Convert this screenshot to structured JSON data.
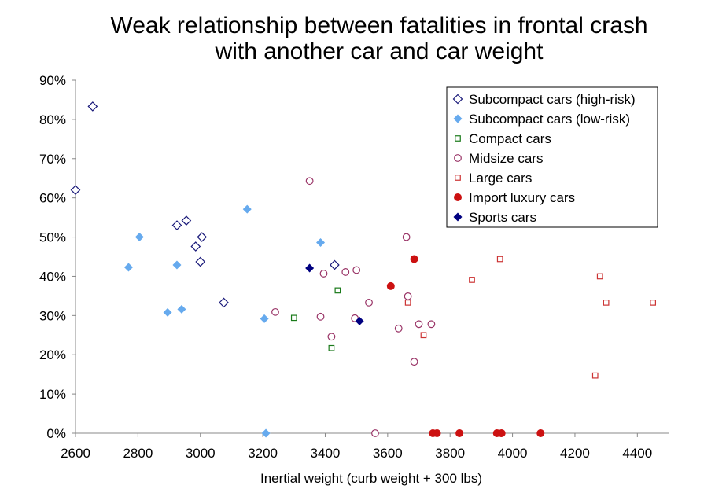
{
  "chart_data": {
    "type": "scatter",
    "title": [
      "Weak relationship between fatalities in frontal crash",
      "with another car and car weight"
    ],
    "xlabel": "Inertial weight (curb weight + 300 lbs)",
    "ylabel": "",
    "xlim": [
      2600,
      4500
    ],
    "ylim": [
      0,
      90
    ],
    "xticks": [
      2600,
      2800,
      3000,
      3200,
      3400,
      3600,
      3800,
      4000,
      4200,
      4400
    ],
    "yticks": [
      0,
      10,
      20,
      30,
      40,
      50,
      60,
      70,
      80,
      90
    ],
    "ytick_labels": [
      "0%",
      "10%",
      "20%",
      "30%",
      "40%",
      "50%",
      "60%",
      "70%",
      "80%",
      "90%"
    ],
    "grid": false,
    "legend_position": "top-right",
    "series": [
      {
        "name": "Subcompact cars (high-risk)",
        "marker": "diamond-open",
        "color": "#1a1a7a",
        "points": [
          [
            2600,
            62
          ],
          [
            2655,
            83.3
          ],
          [
            2925,
            53
          ],
          [
            2955,
            54.2
          ],
          [
            2985,
            47.6
          ],
          [
            3005,
            50
          ],
          [
            3000,
            43.7
          ],
          [
            3075,
            33.3
          ],
          [
            3430,
            42.9
          ]
        ]
      },
      {
        "name": "Subcompact cars (low-risk)",
        "marker": "diamond-filled",
        "color": "#66aaee",
        "points": [
          [
            2805,
            50
          ],
          [
            2770,
            42.3
          ],
          [
            2925,
            42.9
          ],
          [
            2895,
            30.8
          ],
          [
            2940,
            31.6
          ],
          [
            3150,
            57.1
          ],
          [
            3205,
            29.2
          ],
          [
            3385,
            48.6
          ],
          [
            3210,
            0
          ]
        ]
      },
      {
        "name": "Compact cars",
        "marker": "square-open",
        "color": "#1a7a1a",
        "points": [
          [
            3300,
            29.4
          ],
          [
            3440,
            36.4
          ],
          [
            3420,
            21.7
          ]
        ]
      },
      {
        "name": "Midsize cars",
        "marker": "circle-open",
        "color": "#993366",
        "points": [
          [
            3350,
            64.3
          ],
          [
            3240,
            30.9
          ],
          [
            3395,
            40.7
          ],
          [
            3385,
            29.7
          ],
          [
            3420,
            24.6
          ],
          [
            3465,
            41.1
          ],
          [
            3500,
            41.6
          ],
          [
            3495,
            29.3
          ],
          [
            3540,
            33.3
          ],
          [
            3560,
            0
          ],
          [
            3660,
            50
          ],
          [
            3665,
            34.9
          ],
          [
            3635,
            26.7
          ],
          [
            3700,
            27.8
          ],
          [
            3740,
            27.8
          ],
          [
            3685,
            18.2
          ]
        ]
      },
      {
        "name": "Large cars",
        "marker": "square-open",
        "color": "#cc3333",
        "points": [
          [
            3665,
            33.3
          ],
          [
            3715,
            25
          ],
          [
            3870,
            39.1
          ],
          [
            3960,
            44.4
          ],
          [
            4265,
            14.7
          ],
          [
            4280,
            40
          ],
          [
            4300,
            33.3
          ],
          [
            4450,
            33.3
          ]
        ]
      },
      {
        "name": "Import luxury cars",
        "marker": "circle-filled",
        "color": "#cc1111",
        "points": [
          [
            3610,
            37.5
          ],
          [
            3685,
            44.4
          ],
          [
            3745,
            0
          ],
          [
            3758,
            0
          ],
          [
            3830,
            0
          ],
          [
            3950,
            0
          ],
          [
            3965,
            0
          ],
          [
            4090,
            0
          ]
        ]
      },
      {
        "name": "Sports cars",
        "marker": "diamond-filled",
        "color": "#000080",
        "points": [
          [
            3350,
            42.1
          ],
          [
            3510,
            28.6
          ]
        ]
      }
    ]
  }
}
